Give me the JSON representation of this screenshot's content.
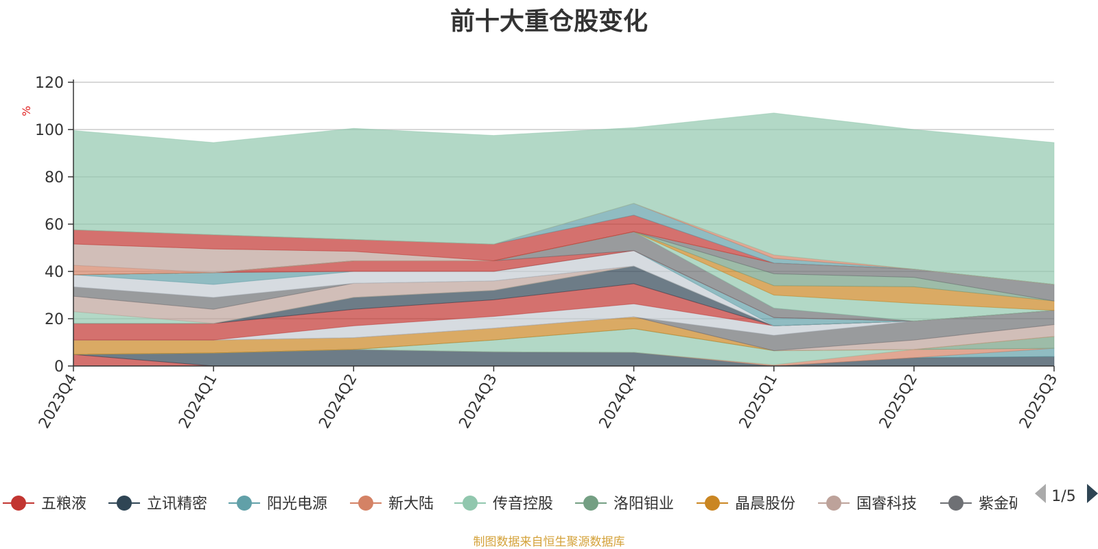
{
  "title": "前十大重仓股变化",
  "source_note": "制图数据来自恒生聚源数据库",
  "y_unit": "%",
  "legend_page": "1/5",
  "chart_data": {
    "type": "area",
    "title": "前十大重仓股变化",
    "xlabel": "",
    "ylabel": "%",
    "ylim": [
      0,
      120
    ],
    "yticks": [
      0,
      20,
      40,
      60,
      80,
      100,
      120
    ],
    "grid": true,
    "stacked": true,
    "legend_position": "bottom",
    "categories": [
      "2023Q4",
      "2024Q1",
      "2024Q2",
      "2024Q3",
      "2024Q4",
      "2025Q1",
      "2025Q2",
      "2025Q3"
    ],
    "series": [
      {
        "name": "五粮液",
        "color": "#c23531",
        "values": [
          4.9,
          0,
          0,
          0,
          0,
          0,
          0,
          0
        ]
      },
      {
        "name": "立讯精密",
        "color": "#2f4554",
        "values": [
          0,
          5.5,
          7,
          6,
          5.8,
          0,
          3.5,
          4
        ]
      },
      {
        "name": "阳光电源",
        "color": "#61a0a8",
        "values": [
          0,
          0,
          0,
          0,
          0,
          0,
          0,
          3.5
        ]
      },
      {
        "name": "新大陆",
        "color": "#d48265",
        "values": [
          0,
          0,
          0,
          0,
          0,
          0.5,
          3.5,
          0
        ]
      },
      {
        "name": "传音控股",
        "color": "#91c7ae",
        "values": [
          0,
          0,
          0,
          5,
          10,
          6,
          0,
          0
        ]
      },
      {
        "name": "洛阳钼业",
        "color": "#749f83",
        "values": [
          0,
          0,
          0,
          0,
          0,
          0,
          0,
          5
        ]
      },
      {
        "name": "晶晨股份",
        "color": "#ca8622",
        "values": [
          6.1,
          5.5,
          5,
          5,
          5,
          0,
          0,
          0
        ]
      },
      {
        "name": "国睿科技",
        "color": "#bda29a",
        "values": [
          0,
          0,
          0,
          0,
          0,
          0,
          4,
          5
        ]
      },
      {
        "name": "紫金矿业",
        "color": "#6e7074",
        "values": [
          0,
          0,
          0,
          0,
          0,
          6.5,
          8,
          6
        ]
      },
      {
        "color": "#c4ccd3",
        "values": [
          0,
          0,
          5,
          5,
          5.5,
          4,
          0,
          0
        ]
      },
      {
        "color": "#c23531",
        "values": [
          7,
          7,
          7,
          7,
          8.5,
          0,
          0,
          0
        ]
      },
      {
        "color": "#2f4554",
        "values": [
          0,
          0,
          5,
          4,
          7.5,
          0,
          0,
          0
        ]
      },
      {
        "color": "#91c7ae",
        "values": [
          5,
          0,
          0,
          0,
          0,
          0,
          0,
          0
        ]
      },
      {
        "color": "#bda29a",
        "values": [
          6.5,
          6,
          6,
          4,
          0,
          0,
          0,
          0
        ]
      },
      {
        "color": "#6e7074",
        "values": [
          4,
          5,
          0,
          0,
          0,
          0,
          0,
          0
        ]
      },
      {
        "color": "#c4ccd3",
        "values": [
          5.1,
          5.5,
          5,
          4,
          6.5,
          0,
          0,
          0
        ]
      },
      {
        "color": "#61a0a8",
        "values": [
          0,
          5,
          0,
          0,
          0,
          3.5,
          0,
          0
        ]
      },
      {
        "color": "#c23531",
        "values": [
          0,
          0,
          4.5,
          4.5,
          0,
          0,
          0,
          0
        ]
      },
      {
        "color": "#6e7074",
        "values": [
          0,
          0,
          0,
          0,
          8,
          4,
          0,
          0
        ]
      },
      {
        "color": "#91c7ae",
        "values": [
          0,
          0,
          0,
          0,
          0,
          5.5,
          7.5,
          0
        ]
      },
      {
        "color": "#ca8622",
        "values": [
          0,
          0,
          0,
          0,
          0,
          4,
          7,
          4
        ]
      },
      {
        "color": "#749f83",
        "values": [
          0,
          0,
          0,
          0,
          0,
          5,
          4,
          0
        ]
      },
      {
        "color": "#6e7074",
        "values": [
          0,
          0,
          0,
          0,
          0,
          4.5,
          3.5,
          7
        ]
      },
      {
        "color": "#d48265",
        "values": [
          4,
          0,
          0,
          0,
          0,
          0,
          0,
          0
        ]
      },
      {
        "color": "#bda29a",
        "values": [
          9,
          10,
          4,
          0,
          0,
          0,
          0,
          0
        ]
      },
      {
        "color": "#c23531",
        "values": [
          6,
          6,
          5,
          7,
          7,
          0,
          0,
          0
        ]
      },
      {
        "color": "#61a0a8",
        "values": [
          0,
          0,
          0,
          0,
          5,
          2,
          0,
          0
        ]
      },
      {
        "color": "#d48265",
        "values": [
          0,
          0,
          0,
          0,
          0,
          1.5,
          0,
          0
        ]
      },
      {
        "color": "#91c7ae",
        "values": [
          42,
          39,
          47,
          46,
          32,
          60,
          59,
          60
        ]
      }
    ]
  }
}
